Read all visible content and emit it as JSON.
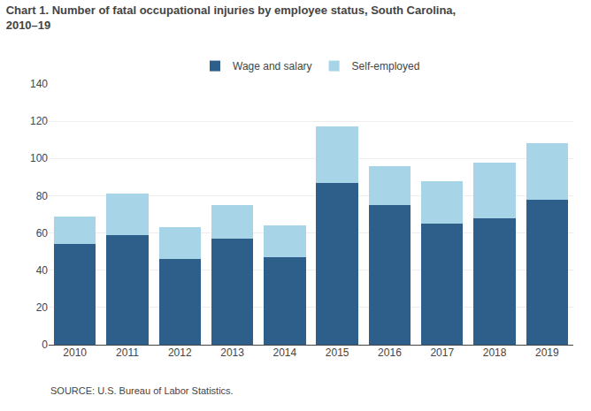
{
  "chart_data": {
    "type": "bar",
    "stacked": true,
    "title": "Chart 1. Number of fatal occupational injuries by employee status, South Carolina,\n2010–19",
    "annotations": [
      "SOURCE: U.S. Bureau of Labor Statistics."
    ],
    "categories": [
      "2010",
      "2011",
      "2012",
      "2013",
      "2014",
      "2015",
      "2016",
      "2017",
      "2018",
      "2019"
    ],
    "series": [
      {
        "name": "Wage and salary",
        "color": "#2E5F8A",
        "values": [
          54,
          59,
          46,
          57,
          47,
          87,
          75,
          65,
          68,
          78
        ]
      },
      {
        "name": "Self-employed",
        "color": "#A8D4E8",
        "values": [
          15,
          22,
          17,
          18,
          17,
          30,
          21,
          23,
          30,
          30
        ]
      }
    ],
    "ylim": [
      0,
      140
    ],
    "yticks": [
      0,
      20,
      40,
      60,
      80,
      100,
      120,
      140
    ],
    "grid": true,
    "legend": "top"
  }
}
